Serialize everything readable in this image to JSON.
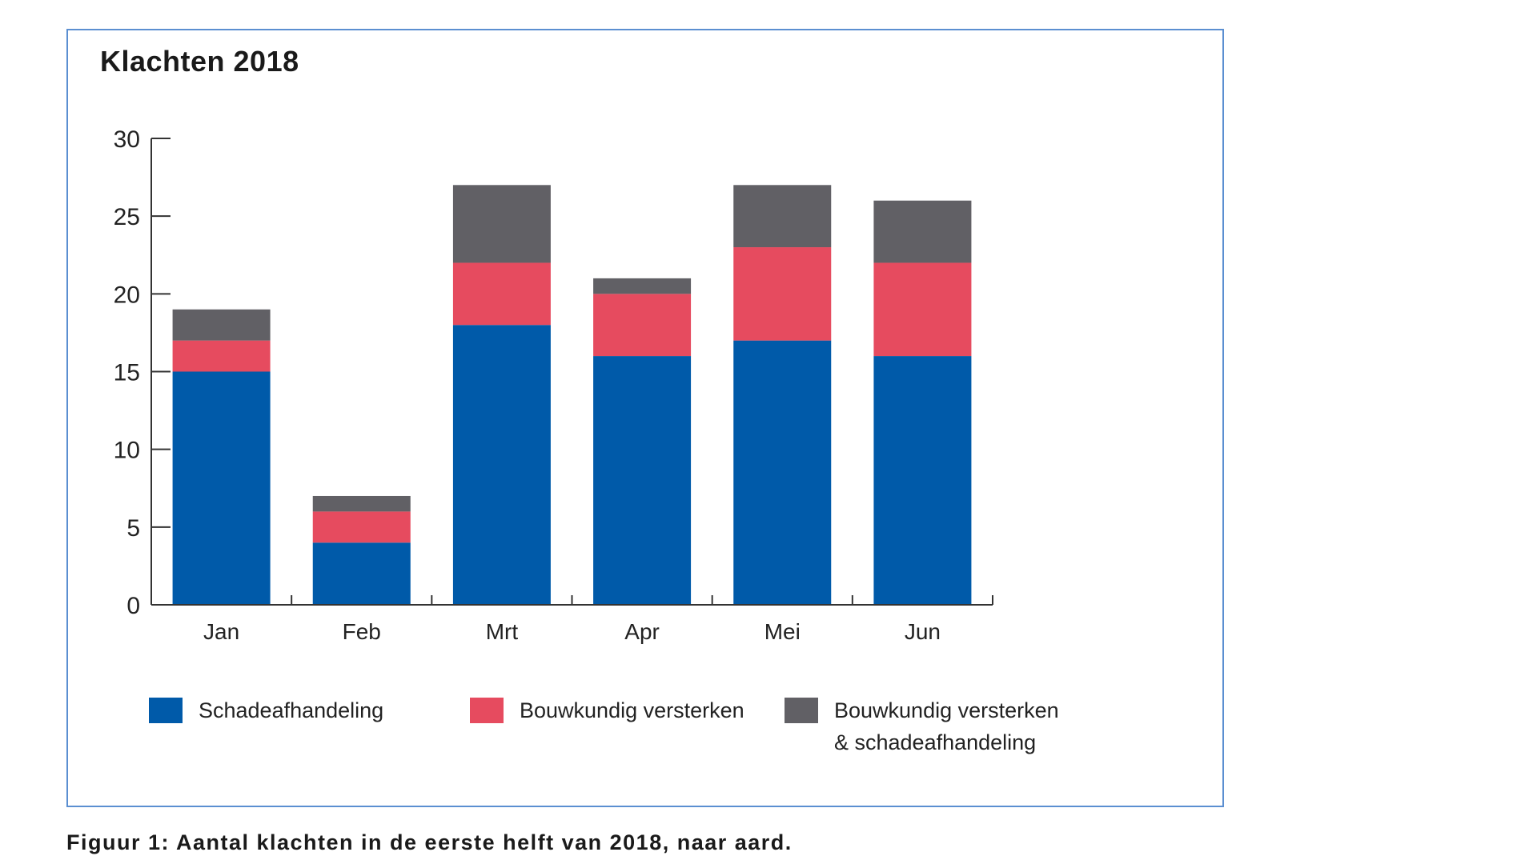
{
  "chart_data": {
    "type": "bar",
    "stacked": true,
    "title": "Klachten 2018",
    "categories": [
      "Jan",
      "Feb",
      "Mrt",
      "Apr",
      "Mei",
      "Jun"
    ],
    "series": [
      {
        "name": "Schadeafhandeling",
        "color": "#005aa9",
        "values": [
          15,
          4,
          18,
          16,
          17,
          16
        ]
      },
      {
        "name": "Bouwkundig versterken",
        "color": "#e64b5f",
        "values": [
          2,
          2,
          4,
          4,
          6,
          6
        ]
      },
      {
        "name_lines": [
          "Bouwkundig versterken",
          "& schadeafhandeling"
        ],
        "color": "#616065",
        "values": [
          2,
          1,
          5,
          1,
          4,
          4
        ]
      }
    ],
    "ylim": [
      0,
      30
    ],
    "yticks": [
      0,
      5,
      10,
      15,
      20,
      25,
      30
    ],
    "xlabel": "",
    "ylabel": "",
    "legend_position": "bottom"
  },
  "caption": "Figuur 1: Aantal klachten in de eerste helft van 2018, naar aard."
}
